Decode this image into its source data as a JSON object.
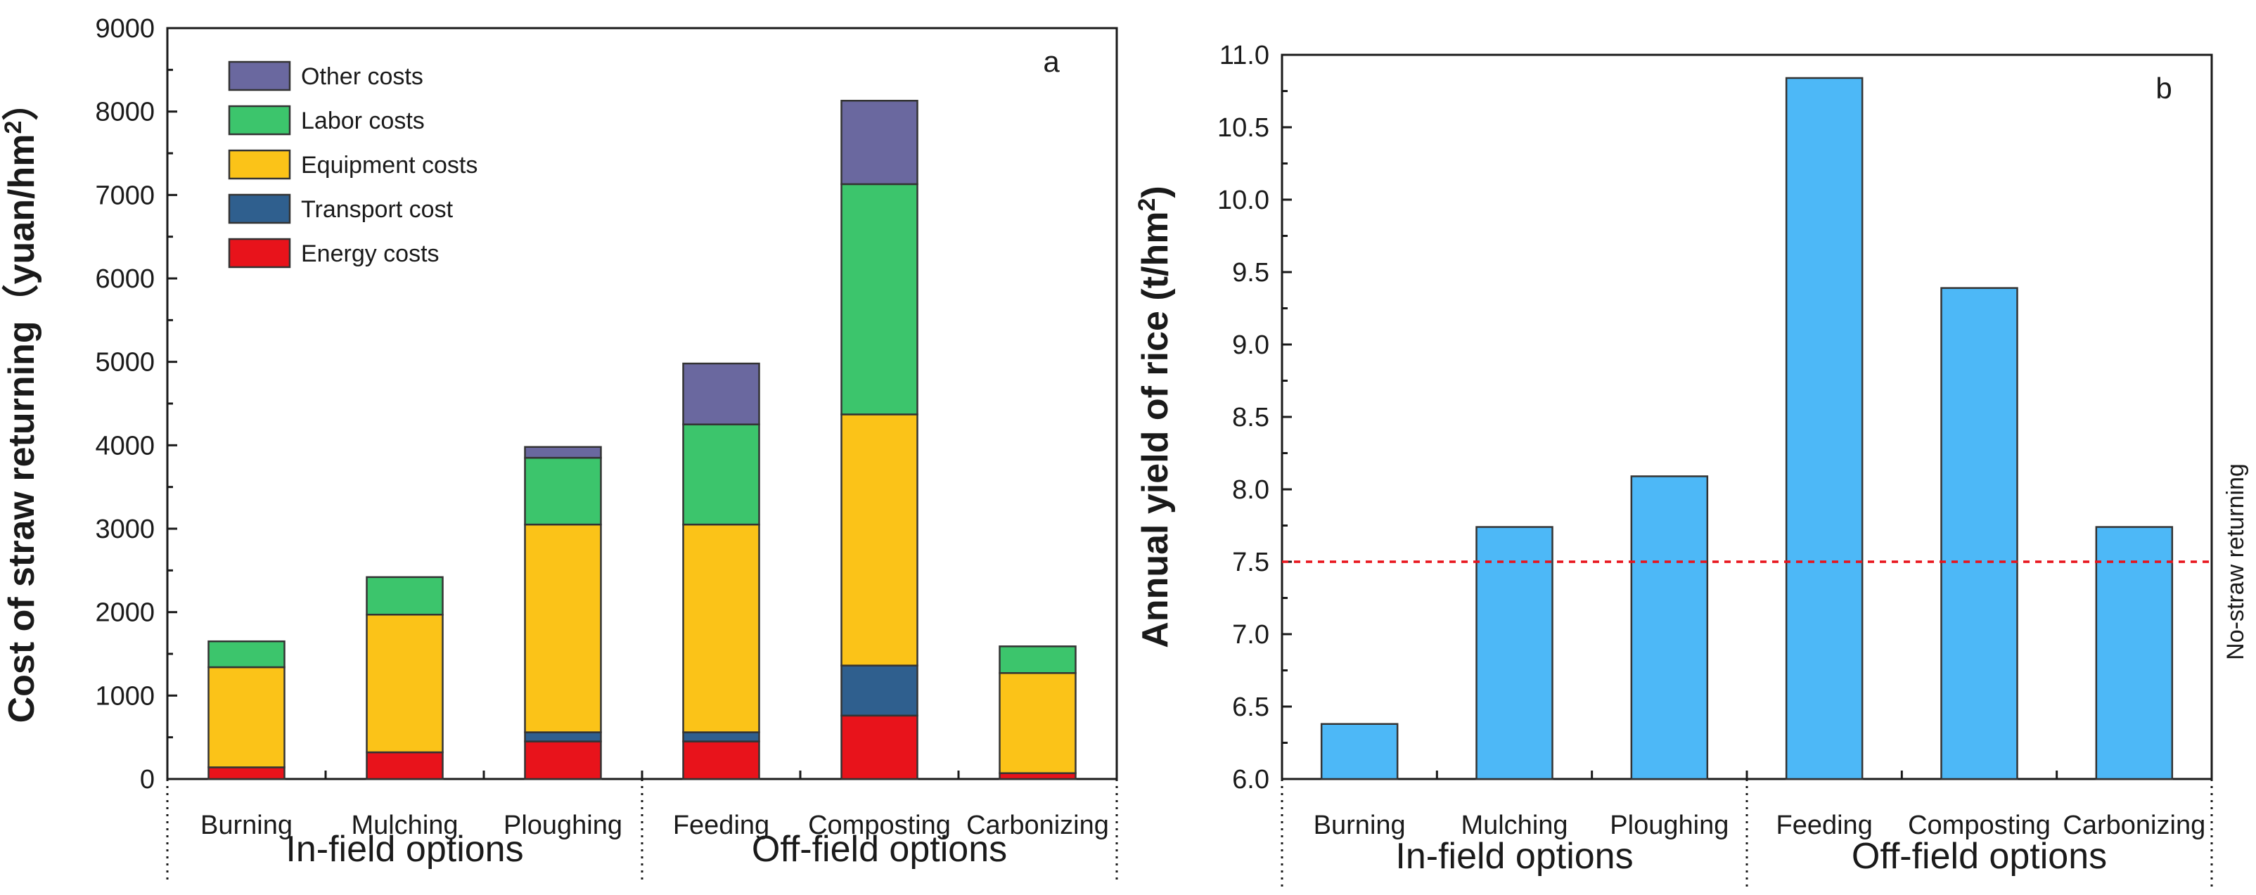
{
  "chart_data": [
    {
      "panel": "a",
      "type": "bar",
      "stacked": true,
      "ylabel": "Cost of straw returning（yuan/hm",
      "ylabel_superscript": "2",
      "ylabel_close": "）",
      "ylim": [
        0,
        9000
      ],
      "yticks": [
        0,
        1000,
        2000,
        3000,
        4000,
        5000,
        6000,
        7000,
        8000,
        9000
      ],
      "categories": [
        "Burning",
        "Mulching",
        "Ploughing",
        "Feeding",
        "Composting",
        "Carbonizing"
      ],
      "groups": [
        {
          "label": "In-field options",
          "count": 3
        },
        {
          "label": "Off-field options",
          "count": 3
        }
      ],
      "series": [
        {
          "name": "Energy costs",
          "color": "#e8131b",
          "values": [
            140,
            320,
            450,
            450,
            760,
            70
          ]
        },
        {
          "name": "Transport cost",
          "color": "#2f5f8e",
          "values": [
            0,
            0,
            110,
            110,
            600,
            0
          ]
        },
        {
          "name": "Equipment costs",
          "color": "#fbc318",
          "values": [
            1200,
            1650,
            2490,
            2490,
            3010,
            1200
          ]
        },
        {
          "name": "Labor costs",
          "color": "#3cc56c",
          "values": [
            310,
            450,
            800,
            1200,
            2760,
            320
          ]
        },
        {
          "name": "Other costs",
          "color": "#6a689f",
          "values": [
            0,
            0,
            130,
            730,
            1000,
            0
          ]
        }
      ],
      "legend_order": [
        "Other costs",
        "Labor costs",
        "Equipment costs",
        "Transport cost",
        "Energy costs"
      ],
      "legend_position": "top-left"
    },
    {
      "panel": "b",
      "type": "bar",
      "ylabel": "Annual yield of rice (t/hm",
      "ylabel_superscript": "2",
      "ylabel_close": ")",
      "ylim": [
        6.0,
        11.0
      ],
      "yticks": [
        "6.0",
        "6.5",
        "7.0",
        "7.5",
        "8.0",
        "8.5",
        "9.0",
        "9.5",
        "10.0",
        "10.5",
        "11.0"
      ],
      "categories": [
        "Burning",
        "Mulching",
        "Ploughing",
        "Feeding",
        "Composting",
        "Carbonizing"
      ],
      "groups": [
        {
          "label": "In-field options",
          "count": 3
        },
        {
          "label": "Off-field options",
          "count": 3
        }
      ],
      "series": [
        {
          "name": "Annual yield of rice",
          "color": "#4db8f7",
          "values": [
            6.38,
            7.74,
            8.09,
            10.84,
            9.39,
            7.74
          ]
        }
      ],
      "reference_line": {
        "label": "No-straw returning",
        "value": 7.5,
        "color": "#e8131b"
      }
    }
  ]
}
